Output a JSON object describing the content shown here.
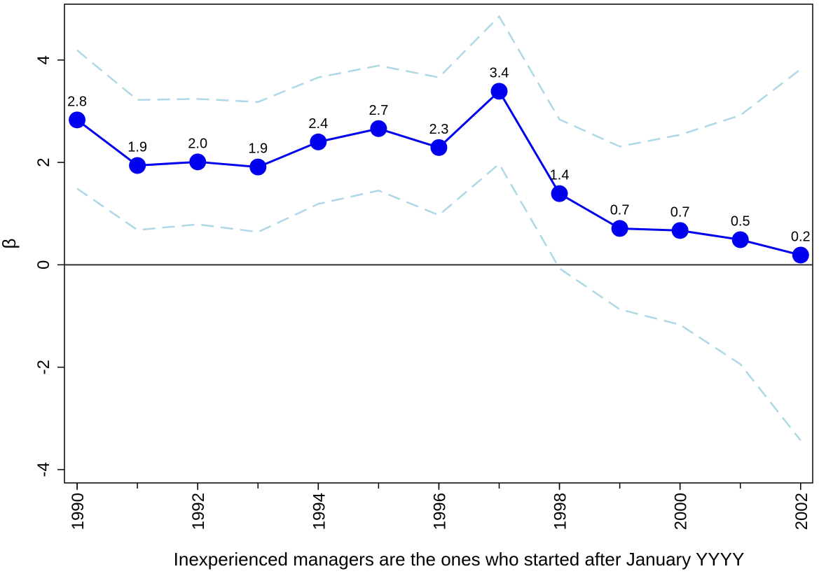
{
  "chart_data": {
    "type": "line",
    "xlabel": "Inexperienced managers are the ones who started after January YYYY",
    "ylabel": "β",
    "x": [
      1990,
      1991,
      1992,
      1993,
      1994,
      1995,
      1996,
      1997,
      1998,
      1999,
      2000,
      2001,
      2002
    ],
    "series": [
      {
        "color": "#0000ee",
        "style": "solid",
        "markers": true,
        "values": [
          2.83,
          1.94,
          2.01,
          1.91,
          2.4,
          2.66,
          2.29,
          3.39,
          1.39,
          0.71,
          0.67,
          0.49,
          0.19
        ],
        "value_labels": [
          "2.8",
          "1.9",
          "2.0",
          "1.9",
          "2.4",
          "2.7",
          "2.3",
          "3.4",
          "1.4",
          "0.7",
          "0.7",
          "0.5",
          "0.2"
        ]
      },
      {
        "color": "#add8e6",
        "style": "dashed",
        "markers": false,
        "values": [
          4.19,
          3.22,
          3.24,
          3.18,
          3.66,
          3.89,
          3.66,
          4.85,
          2.84,
          2.31,
          2.54,
          2.92,
          3.82
        ]
      },
      {
        "color": "#add8e6",
        "style": "dashed",
        "markers": false,
        "values": [
          1.49,
          0.68,
          0.79,
          0.64,
          1.19,
          1.45,
          0.97,
          1.97,
          -0.07,
          -0.87,
          -1.17,
          -1.94,
          -3.43
        ]
      }
    ],
    "hline": 0,
    "xlim": [
      1989.79,
      2002.2
    ],
    "xticks": [
      1990,
      1992,
      1994,
      1996,
      1998,
      2000,
      2002
    ],
    "ylim": [
      -4.26,
      5.09
    ],
    "yticks": [
      -4,
      -2,
      0,
      2,
      4
    ]
  }
}
